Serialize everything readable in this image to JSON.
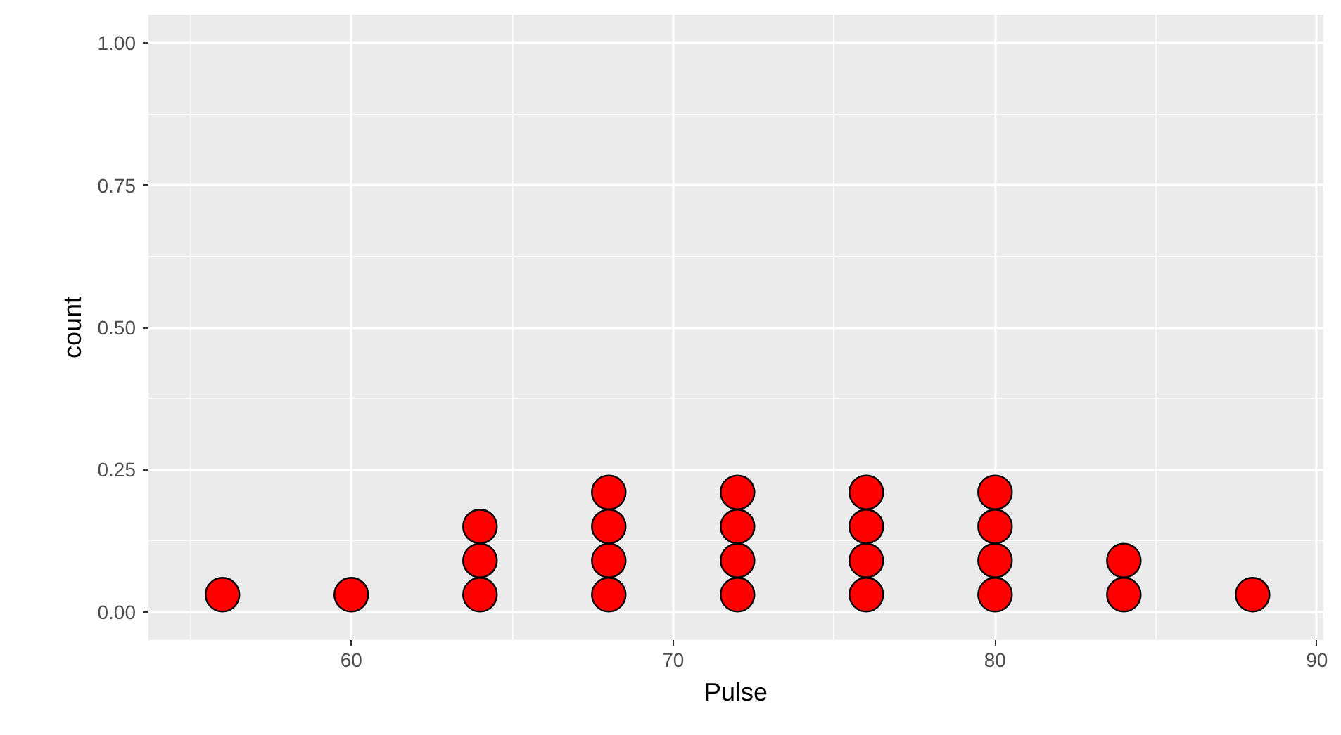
{
  "chart_data": {
    "type": "scatter",
    "xlabel": "Pulse",
    "ylabel": "count",
    "x": [
      56,
      60,
      64,
      64,
      64,
      68,
      68,
      68,
      68,
      72,
      72,
      72,
      72,
      76,
      76,
      76,
      76,
      80,
      80,
      80,
      80,
      84,
      84,
      88
    ],
    "series": [
      {
        "color": "#ff0000",
        "values": [
          0.03,
          0.03,
          0.03,
          0.09,
          0.15,
          0.03,
          0.09,
          0.15,
          0.21,
          0.03,
          0.09,
          0.15,
          0.21,
          0.03,
          0.09,
          0.15,
          0.21,
          0.03,
          0.09,
          0.15,
          0.21,
          0.03,
          0.09,
          0.03
        ]
      }
    ],
    "xlim": [
      53.7,
      90.2
    ],
    "ylim": [
      -0.05,
      1.05
    ],
    "xticks": [
      60,
      70,
      80,
      90
    ],
    "yticks": [
      {
        "value": 0,
        "label": "0.00"
      },
      {
        "value": 0.25,
        "label": "0.25"
      },
      {
        "value": 0.5,
        "label": "0.50"
      },
      {
        "value": 0.75,
        "label": "0.75"
      },
      {
        "value": 1,
        "label": "1.00"
      }
    ],
    "grid": true,
    "marker": "circle"
  }
}
